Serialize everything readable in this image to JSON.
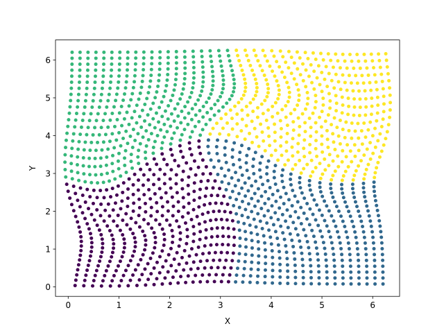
{
  "chart_data": {
    "type": "scatter",
    "title": "",
    "xlabel": "X",
    "ylabel": "Y",
    "xlim": [
      -0.25,
      6.53
    ],
    "ylim": [
      -0.25,
      6.53
    ],
    "xticks": [
      0,
      1,
      2,
      3,
      4,
      5,
      6
    ],
    "yticks": [
      0,
      1,
      2,
      3,
      4,
      5,
      6
    ],
    "xtick_labels": [
      "0",
      "1",
      "2",
      "3",
      "4",
      "5",
      "6"
    ],
    "ytick_labels": [
      "0",
      "1",
      "2",
      "3",
      "4",
      "5",
      "6"
    ],
    "grid": false,
    "legend": "none",
    "point_grid": {
      "count_per_axis": 40,
      "start": 0.0785,
      "end": 6.2046,
      "description_of_values": "points lie on a 40x40 lattice over [0, 2π]² displaced by a vortex-like deformation"
    },
    "colormap": "viridis",
    "series": [
      {
        "color": "#440154"
      },
      {
        "color": "#31688e"
      },
      {
        "color": "#35b779"
      },
      {
        "color": "#fde725"
      }
    ],
    "deformation": {
      "centers": [
        {
          "x": 1.78,
          "y": 2.35,
          "strength": 0.9,
          "radius": 1.5
        },
        {
          "x": 4.5,
          "y": 3.9,
          "strength": -0.9,
          "radius": 1.5
        }
      ]
    }
  }
}
